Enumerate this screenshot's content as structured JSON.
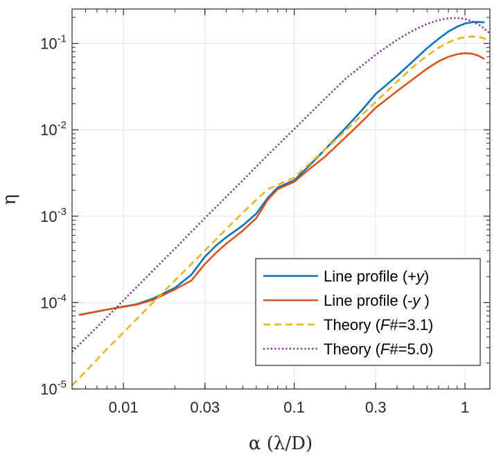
{
  "chart_data": {
    "type": "line",
    "title": "",
    "xlabel": "α (λ/D)",
    "ylabel": "η",
    "xscale": "log",
    "yscale": "log",
    "xlim": [
      0.005,
      1.4
    ],
    "ylim": [
      1e-05,
      0.25
    ],
    "grid": true,
    "legend_position": "bottom-right",
    "x_ticks": [
      {
        "value": 0.01,
        "label": "0.01"
      },
      {
        "value": 0.03,
        "label": "0.03"
      },
      {
        "value": 0.1,
        "label": "0.1"
      },
      {
        "value": 0.3,
        "label": "0.3"
      },
      {
        "value": 1,
        "label": "1"
      }
    ],
    "y_ticks": [
      {
        "value": 1e-05,
        "base": "10",
        "exp": "-5"
      },
      {
        "value": 0.0001,
        "base": "10",
        "exp": "-4"
      },
      {
        "value": 0.001,
        "base": "10",
        "exp": "-3"
      },
      {
        "value": 0.01,
        "base": "10",
        "exp": "-2"
      },
      {
        "value": 0.1,
        "base": "10",
        "exp": "-1"
      }
    ],
    "series": [
      {
        "name": "Line profile (+y)",
        "legend_prefix": "Line profile (+",
        "legend_italic": "y",
        "legend_suffix": ")",
        "color": "#0072BD",
        "dash": "solid",
        "x": [
          0.0055,
          0.008,
          0.012,
          0.015,
          0.02,
          0.025,
          0.03,
          0.035,
          0.04,
          0.05,
          0.06,
          0.07,
          0.08,
          0.1,
          0.12,
          0.15,
          0.2,
          0.25,
          0.3,
          0.4,
          0.5,
          0.6,
          0.7,
          0.8,
          0.9,
          1.0,
          1.1,
          1.2,
          1.3
        ],
        "y": [
          7.2e-05,
          8.3e-05,
          9.6e-05,
          0.000112,
          0.000148,
          0.00021,
          0.00034,
          0.00046,
          0.00057,
          0.00078,
          0.00107,
          0.00163,
          0.00215,
          0.0026,
          0.0037,
          0.0058,
          0.0105,
          0.017,
          0.026,
          0.042,
          0.063,
          0.088,
          0.113,
          0.137,
          0.156,
          0.17,
          0.176,
          0.177,
          0.175
        ]
      },
      {
        "name": "Line profile (-y )",
        "legend_prefix": "Line profile (-",
        "legend_italic": "y",
        "legend_suffix": " )",
        "color": "#D95319",
        "dash": "solid",
        "x": [
          0.0055,
          0.008,
          0.012,
          0.015,
          0.02,
          0.025,
          0.03,
          0.035,
          0.04,
          0.05,
          0.06,
          0.07,
          0.08,
          0.1,
          0.12,
          0.15,
          0.2,
          0.25,
          0.3,
          0.4,
          0.5,
          0.6,
          0.7,
          0.8,
          0.9,
          1.0,
          1.1,
          1.2,
          1.3
        ],
        "y": [
          7.2e-05,
          8.3e-05,
          9.5e-05,
          0.000108,
          0.000142,
          0.00018,
          0.00028,
          0.00038,
          0.00048,
          0.00068,
          0.00095,
          0.00155,
          0.00205,
          0.0025,
          0.0034,
          0.0048,
          0.0082,
          0.0125,
          0.018,
          0.028,
          0.039,
          0.051,
          0.062,
          0.07,
          0.075,
          0.077,
          0.076,
          0.072,
          0.066
        ]
      },
      {
        "name": "Theory (F#=3.1)",
        "legend_prefix": "Theory (",
        "legend_italic": "F",
        "legend_suffix": "#=3.1)",
        "color": "#EDB120",
        "dash": "dashed",
        "x": [
          0.005,
          0.0065,
          0.008,
          0.01,
          0.012,
          0.015,
          0.02,
          0.025,
          0.03,
          0.04,
          0.05,
          0.07,
          0.1,
          0.15,
          0.2,
          0.3,
          0.4,
          0.5,
          0.6,
          0.7,
          0.8,
          0.9,
          1.0,
          1.1,
          1.2,
          1.3,
          1.4
        ],
        "y": [
          1.1e-05,
          1.88e-05,
          2.9e-05,
          4.5e-05,
          6.5e-05,
          0.000102,
          0.00018,
          0.00028,
          0.0004,
          0.00071,
          0.0011,
          0.00205,
          0.0028,
          0.0058,
          0.0098,
          0.021,
          0.036,
          0.054,
          0.072,
          0.089,
          0.103,
          0.113,
          0.118,
          0.12,
          0.119,
          0.114,
          0.107
        ]
      },
      {
        "name": "Theory (F#=5.0)",
        "legend_prefix": "Theory (",
        "legend_italic": "F",
        "legend_suffix": "#=5.0)",
        "color": "#7E2F8E",
        "dash": "dotted",
        "x": [
          0.005,
          0.007,
          0.01,
          0.015,
          0.02,
          0.03,
          0.05,
          0.07,
          0.1,
          0.15,
          0.2,
          0.3,
          0.4,
          0.5,
          0.6,
          0.7,
          0.8,
          0.9,
          1.0,
          1.1,
          1.2,
          1.3,
          1.4
        ],
        "y": [
          2.7e-05,
          5.2e-05,
          0.000106,
          0.000238,
          0.00042,
          0.00095,
          0.0026,
          0.0051,
          0.0102,
          0.0225,
          0.039,
          0.074,
          0.11,
          0.142,
          0.168,
          0.186,
          0.195,
          0.197,
          0.192,
          0.18,
          0.165,
          0.148,
          0.13
        ]
      }
    ]
  }
}
